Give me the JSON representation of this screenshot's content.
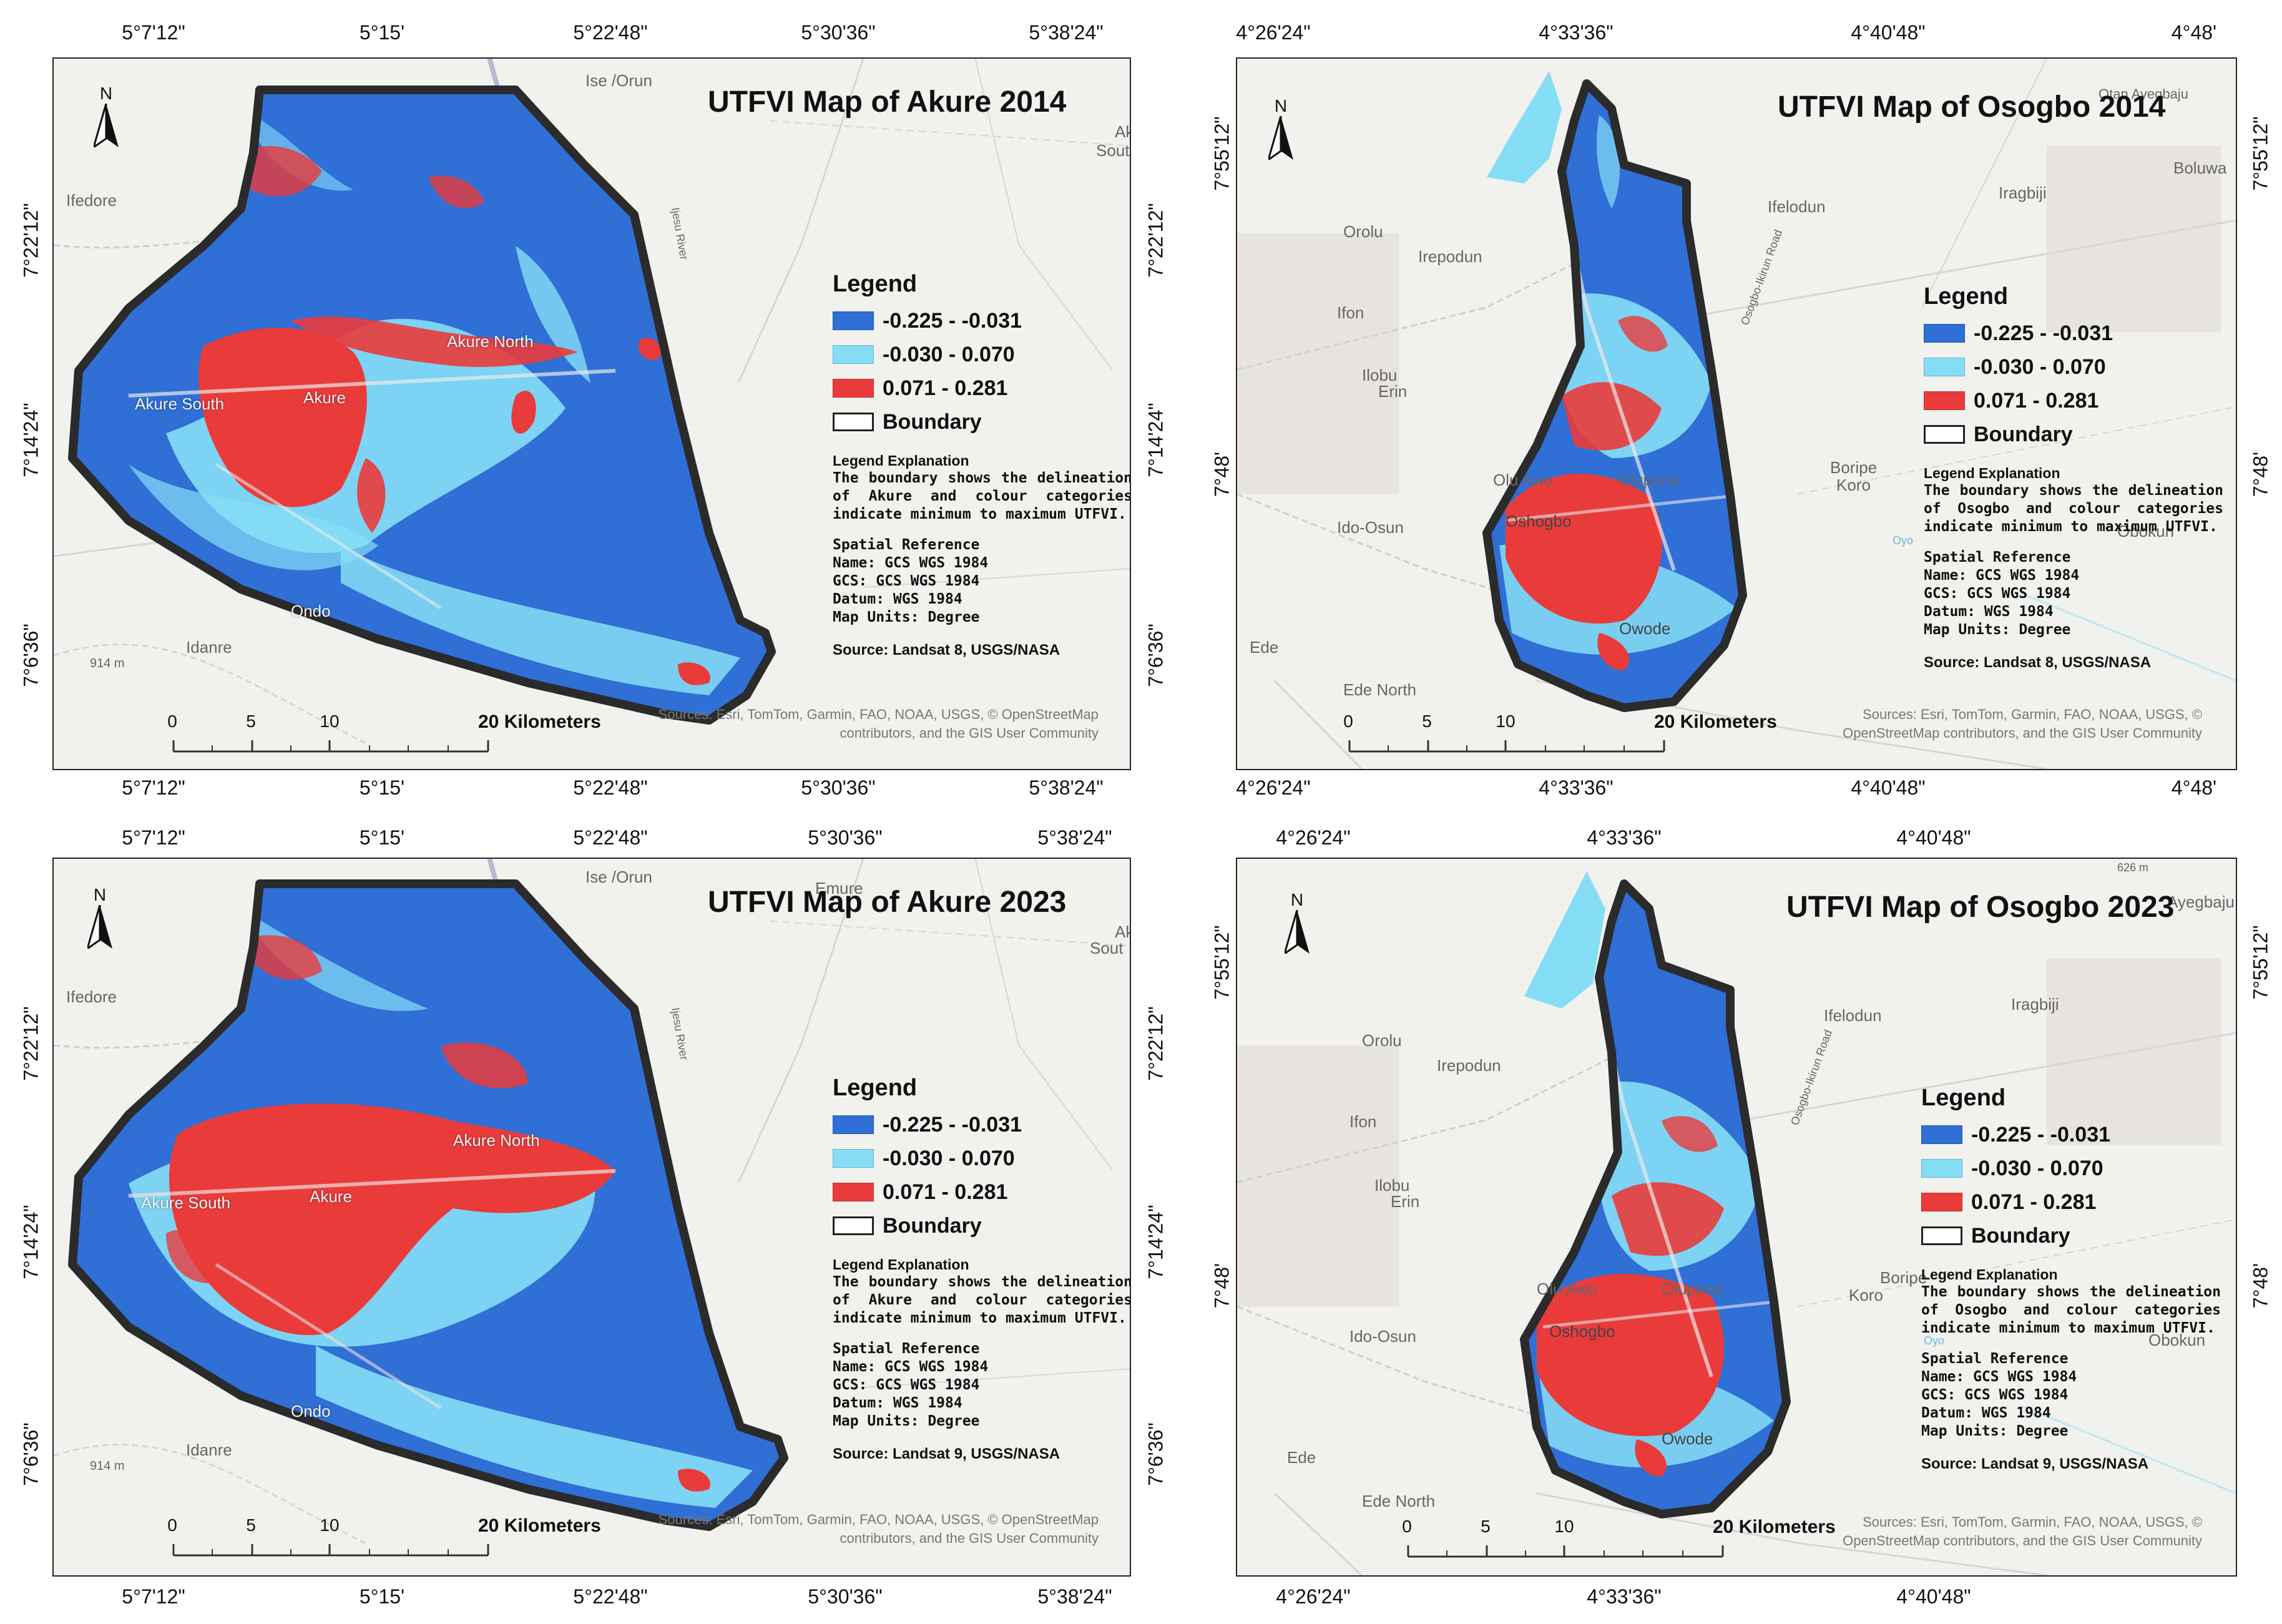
{
  "colors": {
    "class_low": "#2f6fd6",
    "class_mid": "#86def6",
    "class_high": "#ea3b3b",
    "boundary": "#2b2b2b"
  },
  "legend_common": {
    "title": "Legend",
    "classes": [
      "-0.225 - -0.031",
      "-0.030 - 0.070",
      "0.071 - 0.281",
      "Boundary"
    ],
    "expl_title": "Legend Explanation",
    "spatial_title": "Spatial Reference",
    "name": "Name: GCS WGS 1984",
    "gcs": "GCS: GCS WGS 1984",
    "datum": "Datum: WGS 1984",
    "units": "Map Units: Degree"
  },
  "attribution": {
    "akure": [
      "Sources: Esri, TomTom, Garmin, FAO, NOAA, USGS, © OpenStreetMap",
      "contributors, and the GIS User Community"
    ],
    "osogbo": [
      "Sources: Esri, TomTom, Garmin, FAO, NOAA, USGS, ©",
      "OpenStreetMap contributors, and the GIS User Community"
    ]
  },
  "north_letter": "N",
  "maps": [
    {
      "id": "akure-2014",
      "title": "UTFVI Map of Akure 2014",
      "explanation": "The boundary shows the delineation of Akure and colour categories indicate minimum to maximum UTFVI.",
      "source": "Source: Landsat 8, USGS/NASA",
      "coords_top": [
        "5°7'12\"",
        "5°15'",
        "5°22'48\"",
        "5°30'36\"",
        "5°38'24\""
      ],
      "coords_bottom": [
        "5°7'12\"",
        "5°15'",
        "5°22'48\"",
        "5°30'36\"",
        "5°38'24\""
      ],
      "coords_left": [
        "7°22'12\"",
        "7°14'24\"",
        "7°6'36\""
      ],
      "coords_right": [
        "7°22'12\"",
        "7°14'24\"",
        "7°6'36\""
      ],
      "scale": [
        "0",
        "5",
        "10",
        "20 Kilometers"
      ],
      "places": [
        "Ise /Orun",
        "Ak",
        "South",
        "Ifedore",
        "Akure North",
        "Akure South",
        "Akure",
        "Ondo",
        "Idanre",
        "914 m",
        "Ijesu River"
      ]
    },
    {
      "id": "osogbo-2014",
      "title": "UTFVI Map of Osogbo 2014",
      "explanation": "The boundary shows the delineation of Osogbo and colour categories indicate minimum to maximum UTFVI.",
      "source": "Source: Landsat 8, USGS/NASA",
      "coords_top": [
        "4°26'24\"",
        "4°33'36\"",
        "4°40'48\"",
        "4°48'"
      ],
      "coords_bottom": [
        "4°26'24\"",
        "4°33'36\"",
        "4°40'48\"",
        "4°48'"
      ],
      "coords_left": [
        "7°55'12\"",
        "7°48'"
      ],
      "coords_right": [
        "7°55'12\"",
        "7°48'"
      ],
      "scale": [
        "0",
        "5",
        "10",
        "20 Kilometers"
      ],
      "places": [
        "Otan Ayegbaju",
        "Boluwa",
        "Iragbiji",
        "Ifelodun",
        "Orolu",
        "Irepodun",
        "Ifon",
        "Ilobu",
        "Erin",
        "Olu Awo",
        "Olupona",
        "Boripe",
        "Koro",
        "Ido-Osun",
        "Oshogbo",
        "Obokun",
        "Owode",
        "Ede",
        "Ede North",
        "Osogbo-Ikirun Road",
        "Oyo"
      ]
    },
    {
      "id": "akure-2023",
      "title": "UTFVI Map of Akure 2023",
      "explanation": "The boundary shows the delineation of Akure and colour categories indicate minimum to maximum UTFVI.",
      "source": "Source: Landsat 9, USGS/NASA",
      "coords_top": [
        "5°7'12\"",
        "5°15'",
        "5°22'48\"",
        "5°30'36\"",
        "5°38'24\""
      ],
      "coords_bottom": [
        "5°7'12\"",
        "5°15'",
        "5°22'48\"",
        "5°30'36\"",
        "5°38'24\""
      ],
      "coords_left": [
        "7°22'12\"",
        "7°14'24\"",
        "7°6'36\""
      ],
      "coords_right": [
        "7°22'12\"",
        "7°14'24\"",
        "7°6'36\""
      ],
      "scale": [
        "0",
        "5",
        "10",
        "20 Kilometers"
      ],
      "places": [
        "Ise /Orun",
        "Emure",
        "Ak",
        "Sout",
        "Ifedore",
        "Akure North",
        "Akure South",
        "Akure",
        "Ondo",
        "Idanre",
        "914 m",
        "Ijesu River"
      ]
    },
    {
      "id": "osogbo-2023",
      "title": "UTFVI Map of Osogbo 2023",
      "explanation": "The boundary shows the delineation of Osogbo and colour categories indicate minimum to maximum UTFVI.",
      "source": "Source: Landsat 9, USGS/NASA",
      "coords_top": [
        "4°26'24\"",
        "4°33'36\"",
        "4°40'48\""
      ],
      "coords_bottom": [
        "4°26'24\"",
        "4°33'36\"",
        "4°40'48\""
      ],
      "coords_left": [
        "7°55'12\"",
        "7°48'"
      ],
      "coords_right": [
        "7°55'12\"",
        "7°48'"
      ],
      "scale": [
        "0",
        "5",
        "10",
        "20 Kilometers"
      ],
      "places": [
        "626 m",
        "Ayegbaju",
        "Iragbiji",
        "Ifelodun",
        "Orolu",
        "Irepodun",
        "Ifon",
        "Ilobu",
        "Erin",
        "Olu Awo",
        "Olupona",
        "Boripe",
        "Koro",
        "Ido-Osun",
        "Oshogbo",
        "Obokun",
        "Owode",
        "Ede",
        "Ede North",
        "Osogbo-Ikirun Road",
        "Oyo"
      ]
    }
  ]
}
